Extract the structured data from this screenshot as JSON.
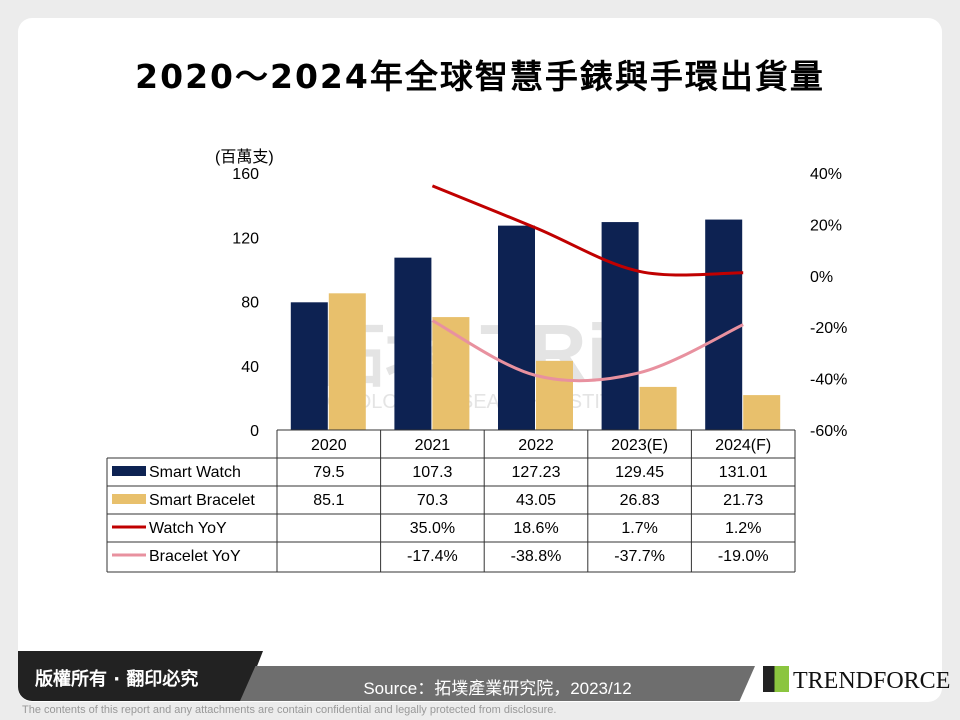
{
  "title": "2020～2024年全球智慧手錶與手環出貨量",
  "chart_data": {
    "type": "bar",
    "title": "2020～2024年全球智慧手錶與手環出貨量",
    "ylabel": "(百萬支)",
    "categories": [
      "2020",
      "2021",
      "2022",
      "2023(E)",
      "2024(F)"
    ],
    "ylim": [
      0,
      160
    ],
    "yticks": [
      0,
      40,
      80,
      120,
      160
    ],
    "y2lim": [
      -60,
      40
    ],
    "y2ticks": [
      "-60%",
      "-40%",
      "-20%",
      "0%",
      "20%",
      "40%"
    ],
    "series": [
      {
        "name": "Smart Watch",
        "kind": "bar",
        "axis": "left",
        "color": "#0d2252",
        "values": [
          79.5,
          107.3,
          127.23,
          129.45,
          131.01
        ],
        "labels": [
          "79.5",
          "107.3",
          "127.23",
          "129.45",
          "131.01"
        ]
      },
      {
        "name": "Smart Bracelet",
        "kind": "bar",
        "axis": "left",
        "color": "#e8c06c",
        "values": [
          85.1,
          70.3,
          43.05,
          26.83,
          21.73
        ],
        "labels": [
          "85.1",
          "70.3",
          "43.05",
          "26.83",
          "21.73"
        ]
      },
      {
        "name": "Watch YoY",
        "kind": "line",
        "axis": "right",
        "color": "#c00000",
        "values": [
          null,
          35.0,
          18.6,
          1.7,
          1.2
        ],
        "labels": [
          "",
          "35.0%",
          "18.6%",
          "1.7%",
          "1.2%"
        ]
      },
      {
        "name": "Bracelet YoY",
        "kind": "line",
        "axis": "right",
        "color": "#e8919f",
        "values": [
          null,
          -17.4,
          -38.8,
          -37.7,
          -19.0
        ],
        "labels": [
          "",
          "-17.4%",
          "-38.8%",
          "-37.7%",
          "-19.0%"
        ]
      }
    ],
    "legend": "data-table"
  },
  "watermark": {
    "cn": "拓墣",
    "en": "TOPOLOGY RESEARCH INSTITUTE",
    "mark": "TRi"
  },
  "footer": {
    "copyright": "版權所有 · 翻印必究",
    "source": "Source：拓墣產業研究院，2023/12",
    "brand": "TRENDFORCE",
    "disclaimer": "The contents of this report and any attachments are contain confidential and legally protected from disclosure."
  }
}
